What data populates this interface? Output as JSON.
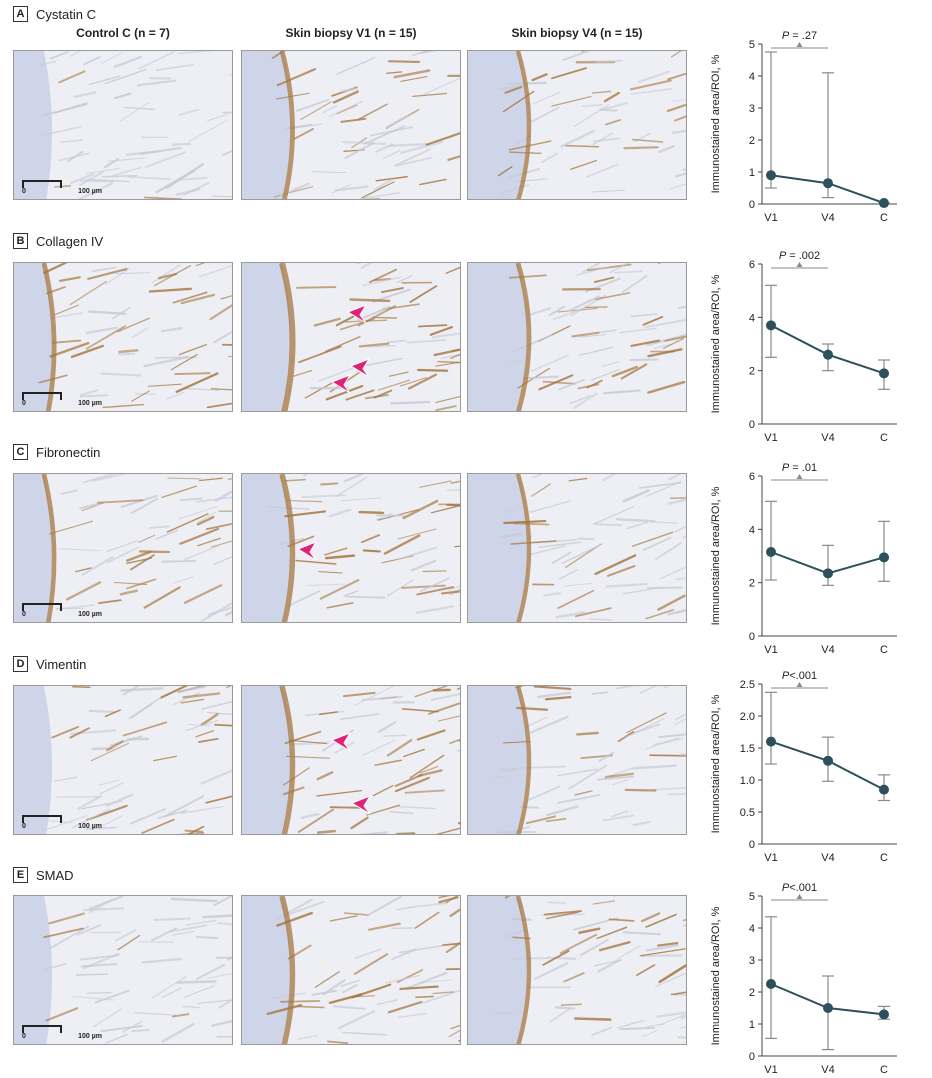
{
  "columns": [
    "Control C (n = 7)",
    "Skin biopsy V1 (n = 15)",
    "Skin biopsy V4 (n = 15)"
  ],
  "scalebar": {
    "zero": "0",
    "label": "100 µm"
  },
  "colors": {
    "line": "#2e4f5c",
    "errorbar": "#8a8a8a",
    "axis": "#444444",
    "bracket": "#8a8a8a",
    "arrow": "#e0237a",
    "tissue_blue": "#c9d0e6",
    "stain_brown": "#a4753e"
  },
  "panels": [
    {
      "letter": "A",
      "title": "Cystatin C",
      "arrows": [],
      "staining": [
        0.05,
        0.45,
        0.35
      ]
    },
    {
      "letter": "B",
      "title": "Collagen IV",
      "arrows": [
        {
          "tile": 1
        },
        {
          "tile": 1
        },
        {
          "tile": 1
        }
      ],
      "staining": [
        0.45,
        0.75,
        0.45
      ]
    },
    {
      "letter": "C",
      "title": "Fibronectin",
      "arrows": [
        {
          "tile": 1
        }
      ],
      "staining": [
        0.4,
        0.6,
        0.35
      ]
    },
    {
      "letter": "D",
      "title": "Vimentin",
      "arrows": [
        {
          "tile": 1
        },
        {
          "tile": 1
        }
      ],
      "staining": [
        0.3,
        0.6,
        0.35
      ]
    },
    {
      "letter": "E",
      "title": "SMAD",
      "arrows": [],
      "staining": [
        0.15,
        0.6,
        0.35
      ]
    }
  ],
  "chart_data": [
    {
      "type": "line",
      "panel": "A",
      "categories": [
        "V1",
        "V4",
        "C"
      ],
      "values": [
        0.9,
        0.65,
        0.03
      ],
      "errors_low": [
        0.5,
        0.2,
        0.0
      ],
      "errors_high": [
        4.75,
        4.1,
        0.03
      ],
      "ylim": [
        0,
        5
      ],
      "yticks": [
        "0",
        "1",
        "2",
        "3",
        "4",
        "5"
      ],
      "ylabel": "Immunostained area/ROI, %",
      "annotation": {
        "p": "P",
        "value": " = .27"
      }
    },
    {
      "type": "line",
      "panel": "B",
      "categories": [
        "V1",
        "V4",
        "C"
      ],
      "values": [
        3.7,
        2.6,
        1.9
      ],
      "errors_low": [
        2.5,
        2.0,
        1.3
      ],
      "errors_high": [
        5.2,
        3.0,
        2.4
      ],
      "ylim": [
        0,
        6
      ],
      "yticks": [
        "0",
        "2",
        "4",
        "6"
      ],
      "ylabel": "Immunostained area/ROI, %",
      "annotation": {
        "p": "P",
        "value": " = .002"
      }
    },
    {
      "type": "line",
      "panel": "C",
      "categories": [
        "V1",
        "V4",
        "C"
      ],
      "values": [
        3.15,
        2.35,
        2.95
      ],
      "errors_low": [
        2.1,
        1.9,
        2.05
      ],
      "errors_high": [
        5.05,
        3.4,
        4.3
      ],
      "ylim": [
        0,
        6
      ],
      "yticks": [
        "0",
        "2",
        "4",
        "6"
      ],
      "ylabel": "Immunostained area/ROI, %",
      "annotation": {
        "p": "P",
        "value": " = .01"
      }
    },
    {
      "type": "line",
      "panel": "D",
      "categories": [
        "V1",
        "V4",
        "C"
      ],
      "values": [
        1.6,
        1.3,
        0.85
      ],
      "errors_low": [
        1.25,
        0.98,
        0.68
      ],
      "errors_high": [
        2.37,
        1.67,
        1.08
      ],
      "ylim": [
        0,
        2.5
      ],
      "yticks": [
        "0",
        "0.5",
        "1.0",
        "1.5",
        "2.0",
        "2.5"
      ],
      "ylabel": "Immunostained area/ROI, %",
      "annotation": {
        "p": "P",
        "value": "<.001"
      }
    },
    {
      "type": "line",
      "panel": "E",
      "categories": [
        "V1",
        "V4",
        "C"
      ],
      "values": [
        2.25,
        1.5,
        1.3
      ],
      "errors_low": [
        0.55,
        0.2,
        1.15
      ],
      "errors_high": [
        4.35,
        2.5,
        1.55
      ],
      "ylim": [
        0,
        5
      ],
      "yticks": [
        "0",
        "1",
        "2",
        "3",
        "4",
        "5"
      ],
      "ylabel": "Immunostained area/ROI, %",
      "annotation": {
        "p": "P",
        "value": "<.001"
      }
    }
  ]
}
